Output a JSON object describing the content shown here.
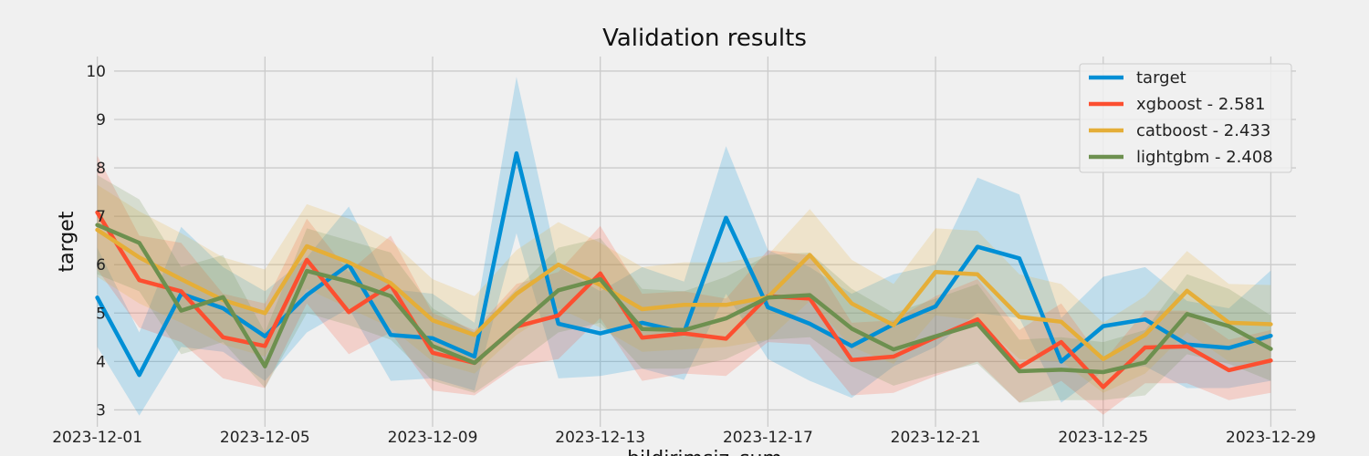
{
  "chart_data": {
    "type": "line",
    "title": "Validation results",
    "xlabel": "bildirimsiz_sum",
    "ylabel": "target",
    "x": [
      "2023-12-01",
      "2023-12-02",
      "2023-12-03",
      "2023-12-04",
      "2023-12-05",
      "2023-12-06",
      "2023-12-07",
      "2023-12-08",
      "2023-12-09",
      "2023-12-10",
      "2023-12-11",
      "2023-12-12",
      "2023-12-13",
      "2023-12-14",
      "2023-12-15",
      "2023-12-16",
      "2023-12-17",
      "2023-12-18",
      "2023-12-19",
      "2023-12-20",
      "2023-12-21",
      "2023-12-22",
      "2023-12-23",
      "2023-12-24",
      "2023-12-25",
      "2023-12-26",
      "2023-12-27",
      "2023-12-28",
      "2023-12-29"
    ],
    "x_ticks": [
      "2023-12-01",
      "2023-12-05",
      "2023-12-09",
      "2023-12-13",
      "2023-12-17",
      "2023-12-21",
      "2023-12-25",
      "2023-12-29"
    ],
    "y_ticks": [
      3,
      4,
      5,
      6,
      7,
      8,
      9,
      10
    ],
    "ylim": [
      2.65,
      10.3
    ],
    "grid": true,
    "legend_position": "top-right",
    "series": [
      {
        "name": "target",
        "color": "#008fd5",
        "values": [
          5.32,
          3.72,
          5.4,
          5.1,
          4.52,
          5.37,
          6.0,
          4.55,
          4.48,
          4.1,
          8.3,
          4.78,
          4.58,
          4.8,
          4.6,
          6.97,
          5.12,
          4.78,
          4.32,
          4.77,
          5.14,
          6.37,
          6.13,
          4.0,
          4.73,
          4.87,
          4.35,
          4.28,
          4.53
        ],
        "lower": [
          4.3,
          2.88,
          4.3,
          4.2,
          3.6,
          4.6,
          5.1,
          3.6,
          3.65,
          3.4,
          6.65,
          3.65,
          3.7,
          3.85,
          3.62,
          5.4,
          4.05,
          3.6,
          3.25,
          3.9,
          4.3,
          5.0,
          4.9,
          3.15,
          3.8,
          3.9,
          3.45,
          3.45,
          3.6
        ],
        "upper": [
          6.35,
          4.6,
          6.78,
          5.95,
          5.45,
          6.15,
          7.2,
          5.5,
          5.4,
          4.8,
          9.88,
          5.95,
          5.45,
          5.95,
          5.65,
          8.45,
          6.3,
          5.95,
          5.4,
          5.8,
          6.0,
          7.8,
          7.45,
          4.9,
          5.75,
          5.95,
          5.25,
          5.1,
          5.88
        ]
      },
      {
        "name": "xgboost - 2.581",
        "color": "#fc4f30",
        "values": [
          7.08,
          5.68,
          5.45,
          4.5,
          4.32,
          6.1,
          5.02,
          5.58,
          4.18,
          3.97,
          4.72,
          4.95,
          5.82,
          4.49,
          4.58,
          4.47,
          5.35,
          5.3,
          4.03,
          4.1,
          4.5,
          4.87,
          3.88,
          4.4,
          3.47,
          4.29,
          4.31,
          3.82,
          4.02
        ],
        "lower": [
          5.9,
          4.7,
          4.4,
          3.65,
          3.45,
          5.2,
          4.15,
          4.6,
          3.4,
          3.3,
          3.9,
          4.05,
          4.9,
          3.6,
          3.75,
          3.7,
          4.4,
          4.35,
          3.3,
          3.35,
          3.7,
          4.0,
          3.15,
          3.6,
          2.9,
          3.55,
          3.55,
          3.2,
          3.35
        ],
        "upper": [
          8.25,
          6.6,
          6.45,
          5.4,
          5.2,
          6.95,
          5.85,
          6.6,
          5.0,
          4.65,
          5.6,
          5.85,
          6.8,
          5.4,
          5.45,
          5.3,
          6.3,
          6.2,
          4.8,
          4.85,
          5.35,
          5.7,
          4.65,
          5.2,
          4.0,
          5.05,
          5.05,
          4.45,
          4.65
        ]
      },
      {
        "name": "catboost - 2.433",
        "color": "#e5ae38",
        "values": [
          6.72,
          6.15,
          5.7,
          5.27,
          5.0,
          6.38,
          6.05,
          5.62,
          4.85,
          4.55,
          5.4,
          6.0,
          5.58,
          5.08,
          5.17,
          5.17,
          5.33,
          6.2,
          5.2,
          4.75,
          5.85,
          5.8,
          4.92,
          4.82,
          4.05,
          4.55,
          5.46,
          4.8,
          4.77
        ],
        "lower": [
          5.75,
          5.2,
          4.8,
          4.35,
          4.1,
          5.5,
          5.1,
          4.7,
          4.0,
          3.75,
          4.55,
          5.1,
          4.7,
          4.2,
          4.25,
          4.3,
          4.45,
          5.25,
          4.3,
          3.95,
          4.95,
          4.85,
          4.05,
          4.0,
          3.35,
          3.75,
          4.6,
          4.0,
          3.95
        ],
        "upper": [
          7.65,
          7.1,
          6.65,
          6.15,
          5.9,
          7.25,
          6.95,
          6.5,
          5.7,
          5.35,
          6.3,
          6.88,
          6.45,
          5.95,
          6.05,
          6.05,
          6.2,
          7.15,
          6.1,
          5.6,
          6.75,
          6.7,
          5.8,
          5.6,
          4.8,
          5.35,
          6.28,
          5.6,
          5.58
        ]
      },
      {
        "name": "lightgbm - 2.408",
        "color": "#6d904f",
        "values": [
          6.82,
          6.45,
          5.05,
          5.33,
          3.9,
          5.87,
          5.65,
          5.35,
          4.32,
          3.97,
          4.72,
          5.47,
          5.7,
          4.67,
          4.65,
          4.89,
          5.32,
          5.37,
          4.68,
          4.25,
          4.52,
          4.78,
          3.8,
          3.83,
          3.78,
          3.98,
          4.98,
          4.73,
          4.26
        ],
        "lower": [
          5.8,
          5.45,
          4.15,
          4.4,
          3.45,
          5.0,
          4.75,
          4.45,
          3.6,
          3.35,
          3.95,
          4.6,
          4.8,
          3.85,
          3.85,
          4.05,
          4.45,
          4.5,
          3.9,
          3.5,
          3.75,
          3.95,
          3.15,
          3.2,
          3.2,
          3.3,
          4.15,
          3.95,
          3.6
        ],
        "upper": [
          7.85,
          7.35,
          5.95,
          6.2,
          4.6,
          6.75,
          6.5,
          6.25,
          5.1,
          4.6,
          5.5,
          6.35,
          6.55,
          5.5,
          5.45,
          5.75,
          6.2,
          6.25,
          5.5,
          5.0,
          5.3,
          5.6,
          4.45,
          4.5,
          4.4,
          4.65,
          5.8,
          5.5,
          4.95
        ]
      }
    ]
  }
}
